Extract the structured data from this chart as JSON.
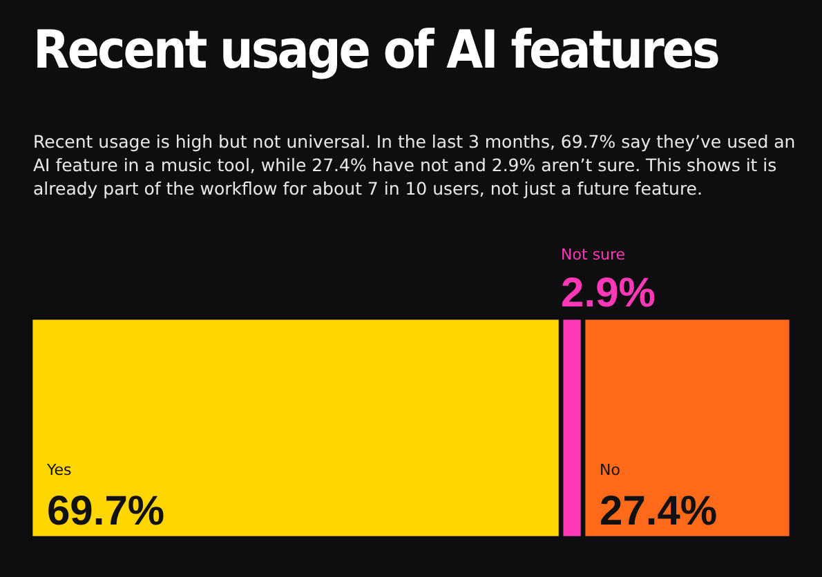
{
  "chart_data": {
    "type": "bar",
    "title": "Recent usage of AI features",
    "subtitle": "Recent usage is high but not universal. In the last 3 months, 69.7% say they’ve used an AI feature in a music tool, while 27.4% have not and 2.9% aren’t sure. This shows it is already part of the workflow for about 7 in 10 users, not just a future feature.",
    "orientation": "horizontal",
    "stacked": true,
    "categories": [
      null
    ],
    "legend": false,
    "tick_labels": false,
    "series": [
      {
        "name": "Yes",
        "color": "#ffd600",
        "values": [
          69.7
        ],
        "value_labels": [
          "69.7%"
        ]
      },
      {
        "name": "Not sure",
        "color": "#ff38b8",
        "values": [
          2.9
        ],
        "value_labels": [
          "2.9%"
        ]
      },
      {
        "name": "No",
        "color": "#ff6a1a",
        "values": [
          27.4
        ],
        "value_labels": [
          "27.4%"
        ]
      }
    ]
  }
}
